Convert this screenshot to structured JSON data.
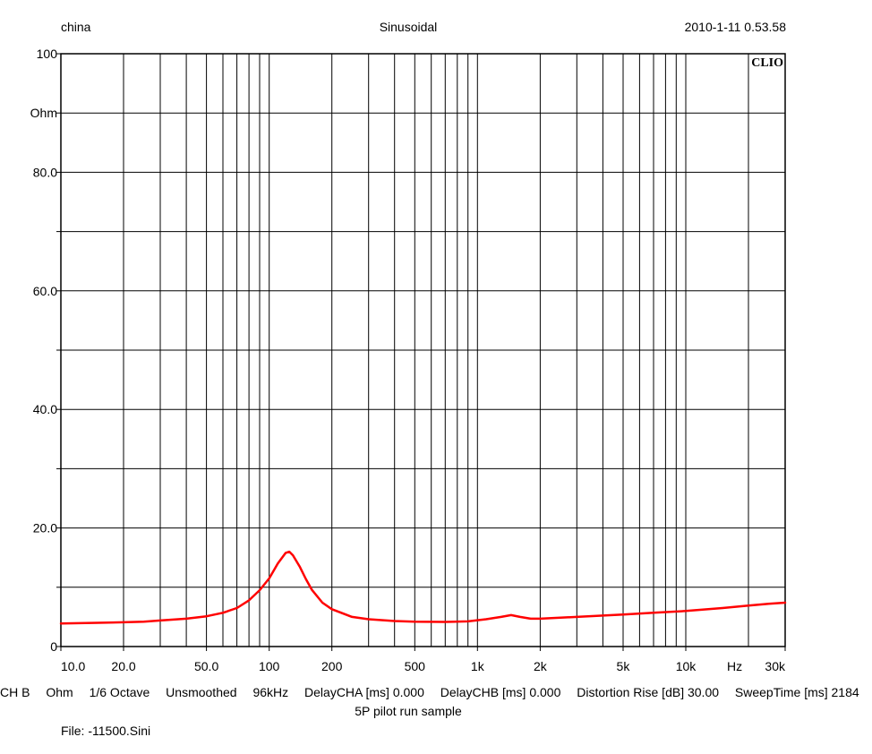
{
  "header": {
    "left": "china",
    "center": "Sinusoidal",
    "right": "2010-1-11 0.53.58"
  },
  "chart_data": {
    "type": "line",
    "brand": "CLIO",
    "ylabel": "Ohm",
    "xlabel": "Hz",
    "xscale": "log",
    "xlim": [
      10,
      30000
    ],
    "ylim": [
      0,
      100
    ],
    "grid": true,
    "y_ticks": [
      {
        "value": 0,
        "label": "0"
      },
      {
        "value": 20,
        "label": "20.0"
      },
      {
        "value": 40,
        "label": "40.0"
      },
      {
        "value": 60,
        "label": "60.0"
      },
      {
        "value": 80,
        "label": "80.0"
      },
      {
        "value": 100,
        "label": "100"
      }
    ],
    "x_ticks": [
      {
        "value": 10,
        "label": "10.0"
      },
      {
        "value": 20,
        "label": "20.0"
      },
      {
        "value": 50,
        "label": "50.0"
      },
      {
        "value": 100,
        "label": "100"
      },
      {
        "value": 200,
        "label": "200"
      },
      {
        "value": 500,
        "label": "500"
      },
      {
        "value": 1000,
        "label": "1k"
      },
      {
        "value": 2000,
        "label": "2k"
      },
      {
        "value": 5000,
        "label": "5k"
      },
      {
        "value": 10000,
        "label": "10k"
      },
      {
        "value": 30000,
        "label": "30k"
      }
    ],
    "series": [
      {
        "color": "#ff0000",
        "points": [
          [
            10,
            3.9
          ],
          [
            15,
            4.0
          ],
          [
            20,
            4.1
          ],
          [
            25,
            4.2
          ],
          [
            30,
            4.4
          ],
          [
            40,
            4.7
          ],
          [
            50,
            5.1
          ],
          [
            60,
            5.7
          ],
          [
            70,
            6.5
          ],
          [
            80,
            7.8
          ],
          [
            90,
            9.5
          ],
          [
            100,
            11.5
          ],
          [
            110,
            14.0
          ],
          [
            120,
            15.8
          ],
          [
            125,
            16.0
          ],
          [
            130,
            15.4
          ],
          [
            140,
            13.5
          ],
          [
            150,
            11.4
          ],
          [
            160,
            9.6
          ],
          [
            180,
            7.4
          ],
          [
            200,
            6.3
          ],
          [
            250,
            5.0
          ],
          [
            300,
            4.6
          ],
          [
            400,
            4.3
          ],
          [
            500,
            4.2
          ],
          [
            700,
            4.15
          ],
          [
            900,
            4.25
          ],
          [
            1100,
            4.6
          ],
          [
            1300,
            5.0
          ],
          [
            1450,
            5.3
          ],
          [
            1600,
            5.0
          ],
          [
            1800,
            4.7
          ],
          [
            2000,
            4.7
          ],
          [
            3000,
            5.0
          ],
          [
            5000,
            5.4
          ],
          [
            7000,
            5.7
          ],
          [
            10000,
            6.0
          ],
          [
            15000,
            6.5
          ],
          [
            20000,
            6.9
          ],
          [
            25000,
            7.2
          ],
          [
            30000,
            7.4
          ]
        ]
      }
    ]
  },
  "footer": {
    "items": [
      "CH B",
      "Ohm",
      "1/6 Octave",
      "Unsmoothed",
      "96kHz",
      "DelayCHA [ms] 0.000",
      "DelayCHB [ms] 0.000",
      "Distortion Rise [dB] 30.00",
      "SweepTime [ms] 2184"
    ],
    "caption": "5P pilot run sample",
    "file": "File: -11500.Sini"
  }
}
